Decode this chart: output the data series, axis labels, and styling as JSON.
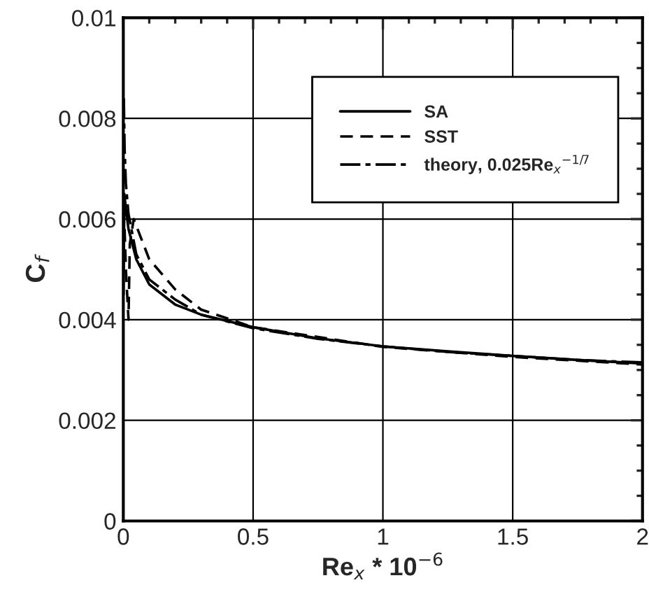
{
  "chart_data": {
    "type": "line",
    "xlabel": "Re$_{x}$ * 10$^{−6}$",
    "ylabel": "C$_{f}$",
    "xlim": [
      0,
      2
    ],
    "ylim": [
      0,
      0.01
    ],
    "xticks": [
      0,
      0.5,
      1,
      1.5,
      2
    ],
    "yticks": [
      0,
      0.002,
      0.004,
      0.006,
      0.008,
      0.01
    ],
    "grid": true,
    "legend": "top right",
    "series": [
      {
        "name": "SA",
        "color": "#000000",
        "line_style": "solid",
        "x": [
          0.001,
          0.004,
          0.01,
          0.02,
          0.05,
          0.1,
          0.2,
          0.3,
          0.5,
          0.75,
          1,
          1.25,
          1.5,
          1.75,
          2
        ],
        "values": [
          0.0045,
          0.0065,
          0.0062,
          0.0058,
          0.0052,
          0.0047,
          0.0043,
          0.0041,
          0.00385,
          0.00363,
          0.00347,
          0.00337,
          0.00328,
          0.0032,
          0.00313
        ]
      },
      {
        "name": "SST",
        "color": "#000000",
        "line_style": "dashed",
        "x": [
          0.005,
          0.01,
          0.02,
          0.025,
          0.04,
          0.07,
          0.1,
          0.2,
          0.3,
          0.5,
          1,
          1.5,
          2
        ],
        "values": [
          0.0058,
          0.005,
          0.004,
          0.0055,
          0.006,
          0.0056,
          0.0052,
          0.0046,
          0.0042,
          0.00385,
          0.00346,
          0.00326,
          0.00311
        ]
      },
      {
        "name": "theory, 0.025Re$_{x}$$^{−1/7}$",
        "color": "#000000",
        "line_style": "dashdot",
        "x": [
          0.002,
          0.005,
          0.01,
          0.02,
          0.05,
          0.1,
          0.2,
          0.3,
          0.5,
          0.75,
          1,
          1.25,
          1.5,
          1.75,
          2
        ],
        "values": [
          0.0084,
          0.0074,
          0.0067,
          0.0061,
          0.0053,
          0.0048,
          0.0044,
          0.0041,
          0.00383,
          0.00362,
          0.00347,
          0.00336,
          0.00328,
          0.0032,
          0.00315
        ]
      }
    ]
  }
}
